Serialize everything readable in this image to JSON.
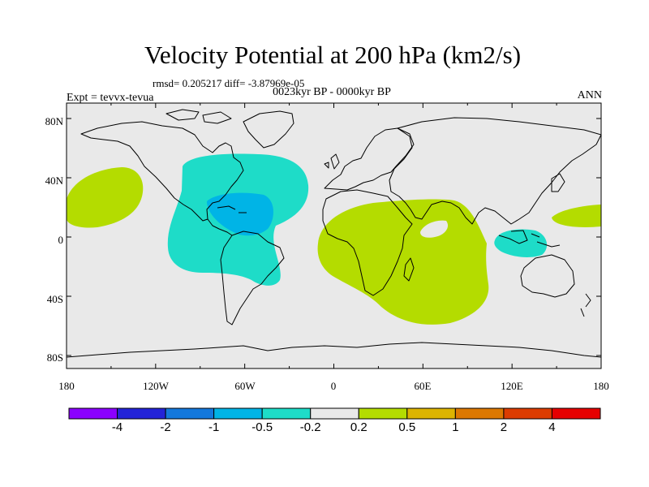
{
  "title": "Velocity Potential at 200 hPa (km2/s)",
  "stats_line": "rmsd= 0.205217 diff= -3.87969e-05",
  "period_line": "0023kyr BP - 0000kyr BP",
  "experiment_line": "Expt = tevvx-tevua",
  "season": "ANN",
  "lat_labels": [
    "80N",
    "40N",
    "0",
    "40S",
    "80S"
  ],
  "lon_labels": [
    "180",
    "120W",
    "60W",
    "0",
    "60E",
    "120E",
    "180"
  ],
  "colorbar": {
    "colors": [
      "#8b00ff",
      "#2323d8",
      "#1478dc",
      "#00b4e6",
      "#1edcc8",
      "#e9e9e9",
      "#b4dc00",
      "#dcb400",
      "#dc7800",
      "#dc3c00",
      "#e60000"
    ],
    "labels": [
      "-4",
      "-2",
      "-1",
      "-0.5",
      "-0.2",
      "0.2",
      "0.5",
      "1",
      "2",
      "4"
    ]
  },
  "map_colors": {
    "background": "#e9e9e9",
    "negative_weak": "#1edcc8",
    "negative_mid": "#00b4e6",
    "positive_weak": "#b4dc00"
  }
}
